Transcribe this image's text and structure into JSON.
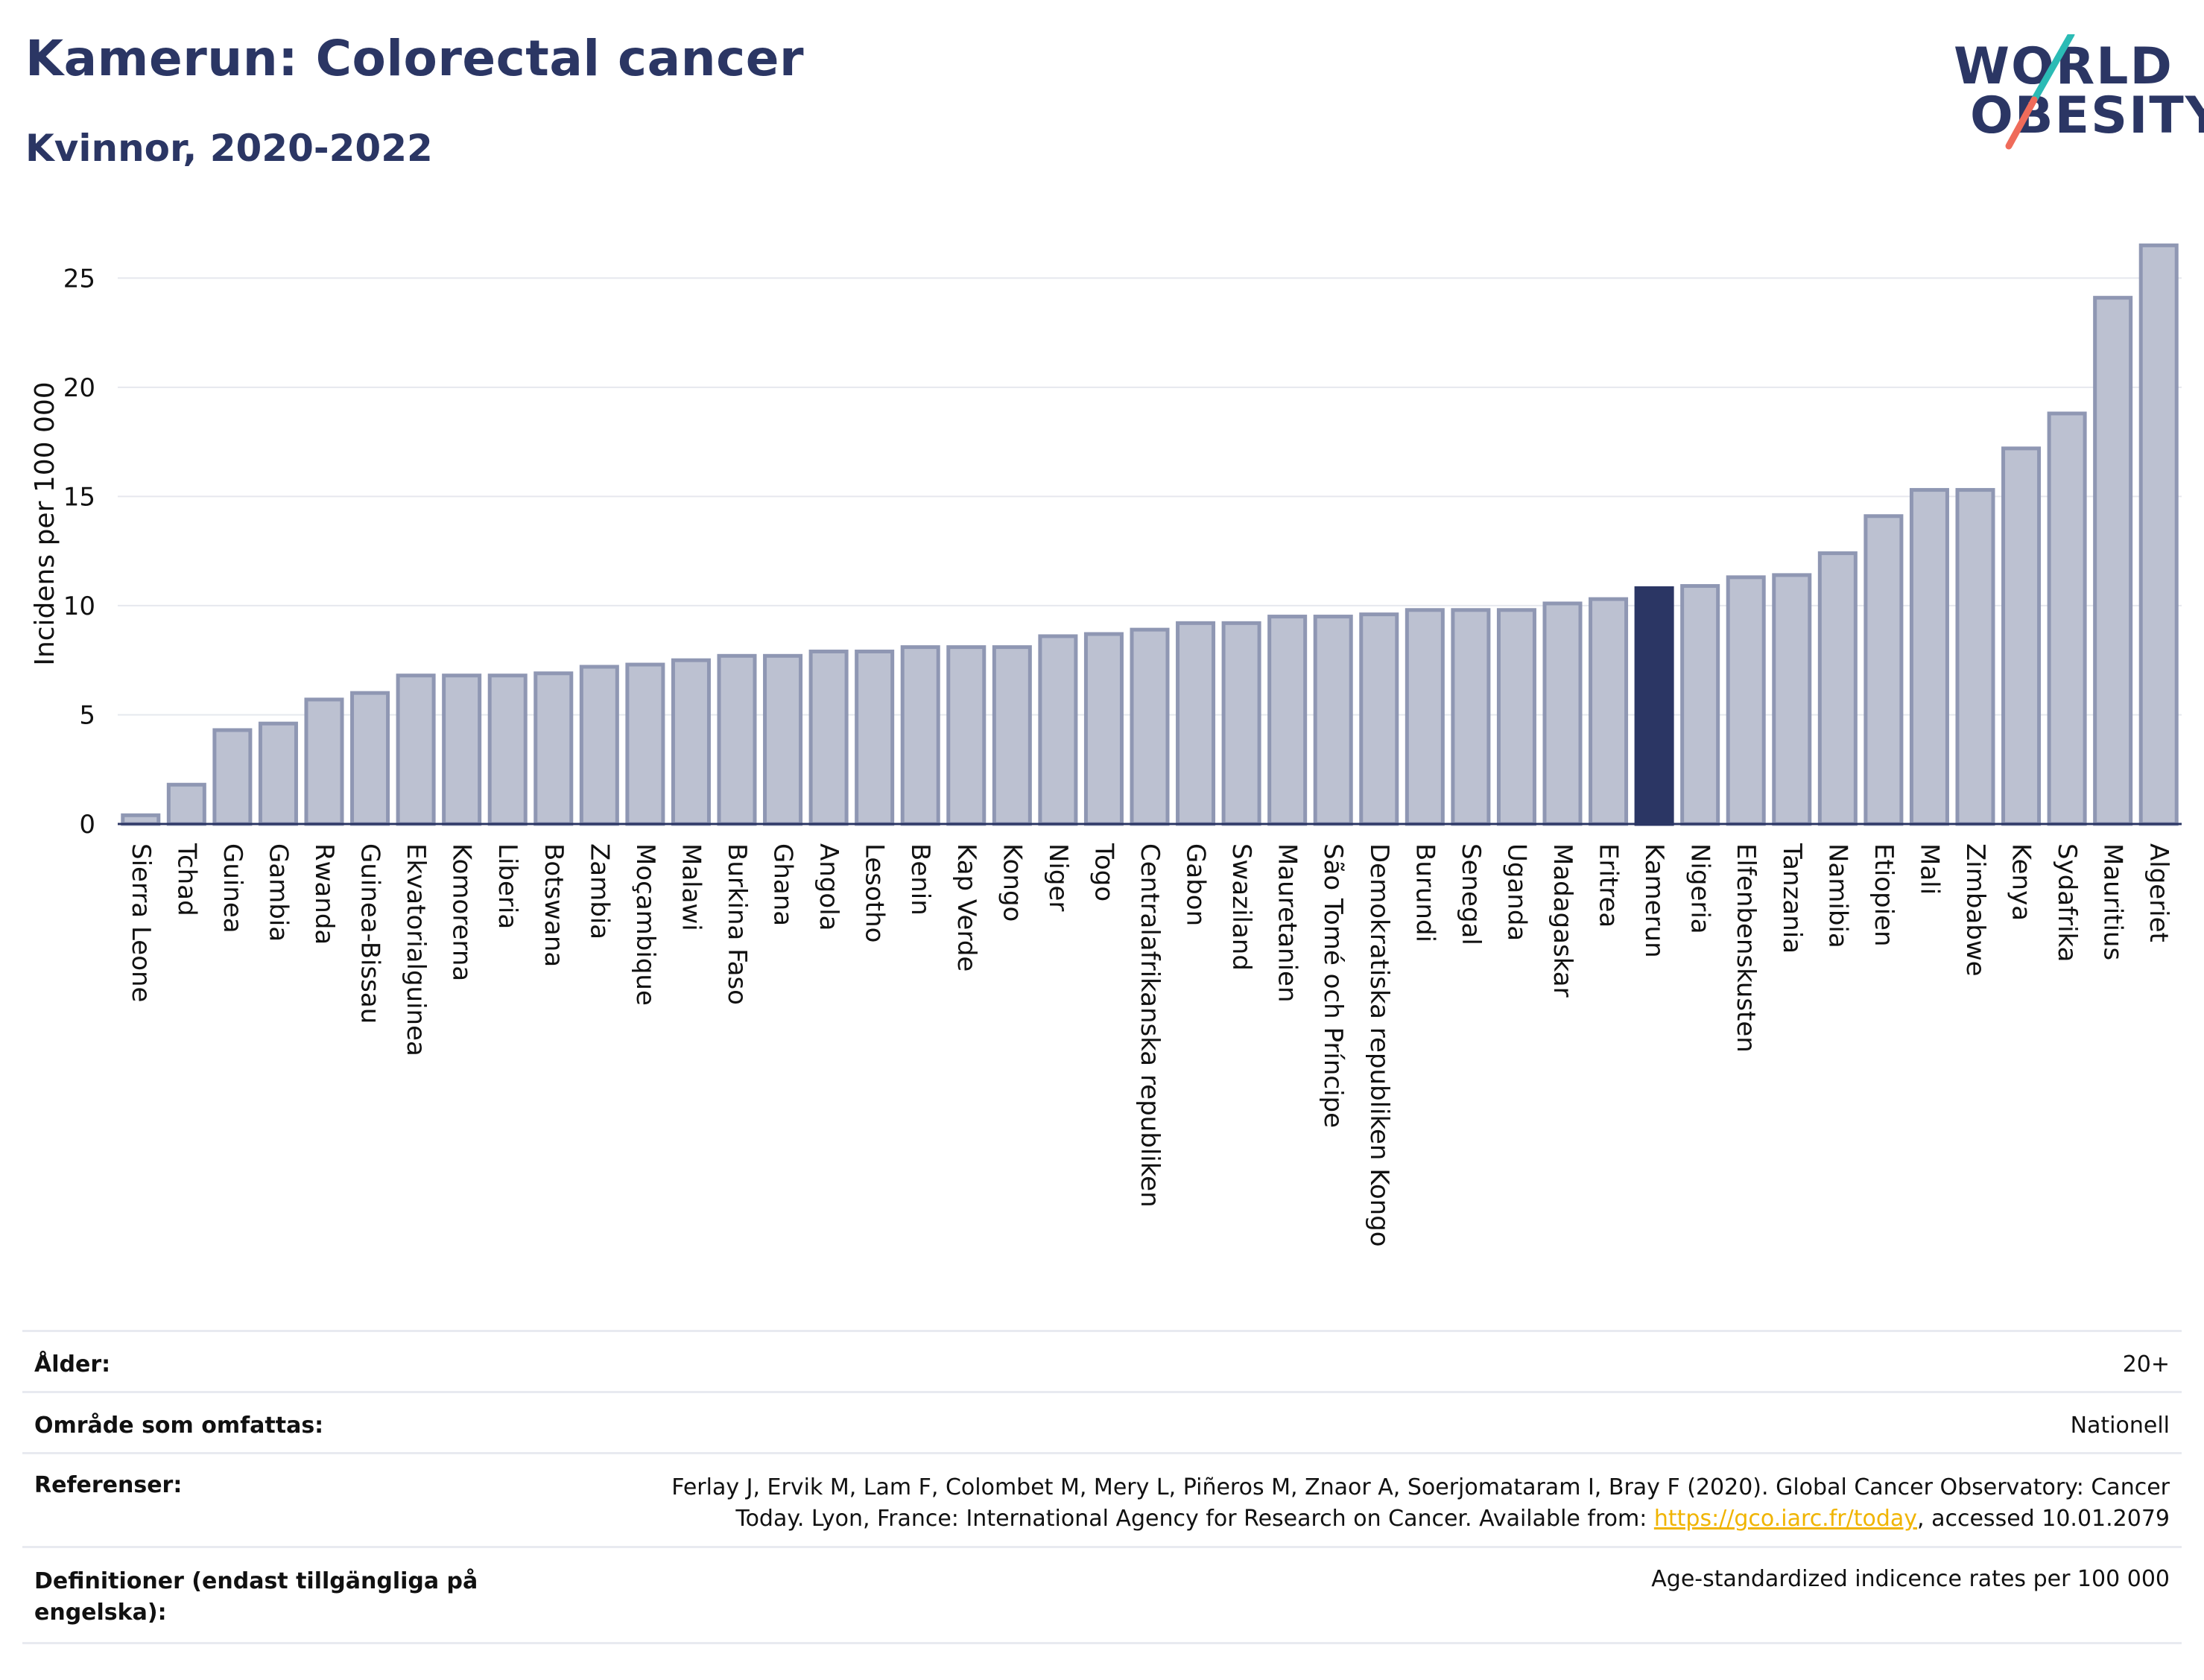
{
  "header": {
    "title": "Kamerun: Colorectal cancer",
    "subtitle": "Kvinnor, 2020-2022",
    "logo_line1": "WORLD",
    "logo_line2": "OBESITY"
  },
  "colors": {
    "bar": "#bcc1d1",
    "bar_border": "#8f97b3",
    "highlight": "#2b3664",
    "title": "#2b3664",
    "link": "#f0b400",
    "logo_teal": "#2bbbb5",
    "logo_coral": "#ef6b5a"
  },
  "chart_data": {
    "type": "bar",
    "ylabel": "Incidens per 100 000",
    "xlabel": "",
    "ylim": [
      0,
      27.5
    ],
    "yticks": [
      0,
      5,
      10,
      15,
      20,
      25
    ],
    "grid": true,
    "highlight": "Kamerun",
    "categories": [
      "Sierra Leone",
      "Tchad",
      "Guinea",
      "Gambia",
      "Rwanda",
      "Guinea-Bissau",
      "Ekvatorialguinea",
      "Komorerna",
      "Liberia",
      "Botswana",
      "Zambia",
      "Moçambique",
      "Malawi",
      "Burkina Faso",
      "Ghana",
      "Angola",
      "Lesotho",
      "Benin",
      "Kap Verde",
      "Kongo",
      "Niger",
      "Togo",
      "Centralafrikanska republiken",
      "Gabon",
      "Swaziland",
      "Mauretanien",
      "São Tomé och Príncipe",
      "Demokratiska republiken Kongo",
      "Burundi",
      "Senegal",
      "Uganda",
      "Madagaskar",
      "Eritrea",
      "Kamerun",
      "Nigeria",
      "Elfenbenskusten",
      "Tanzania",
      "Namibia",
      "Etiopien",
      "Mali",
      "Zimbabwe",
      "Kenya",
      "Sydafrika",
      "Mauritius",
      "Algeriet"
    ],
    "values": [
      0.4,
      1.8,
      4.3,
      4.6,
      5.7,
      6.0,
      6.8,
      6.8,
      6.8,
      6.9,
      7.2,
      7.3,
      7.5,
      7.7,
      7.7,
      7.9,
      7.9,
      8.1,
      8.1,
      8.1,
      8.6,
      8.7,
      8.9,
      9.2,
      9.2,
      9.5,
      9.5,
      9.6,
      9.8,
      9.8,
      9.8,
      10.1,
      10.3,
      10.8,
      10.9,
      11.3,
      11.4,
      12.4,
      14.1,
      15.3,
      15.3,
      17.2,
      18.8,
      24.1,
      26.5
    ]
  },
  "meta": {
    "age_label": "Ålder:",
    "age_value": "20+",
    "area_label": "Område som omfattas:",
    "area_value": "Nationell",
    "ref_label": "Referenser:",
    "ref_text_1": "Ferlay J, Ervik M, Lam F, Colombet M, Mery L, Piñeros M, Znaor A, Soerjomataram I, Bray F (2020). Global Cancer Observatory: Cancer",
    "ref_text_2": "Today. Lyon, France: International Agency for Research on Cancer. Available from: ",
    "ref_link": "https://gco.iarc.fr/today",
    "ref_text_3": ", accessed 10.01.2079",
    "def_label_1": "Definitioner (endast tillgängliga på",
    "def_label_2": "engelska):",
    "def_value": "Age-standardized indicence rates per 100 000"
  }
}
